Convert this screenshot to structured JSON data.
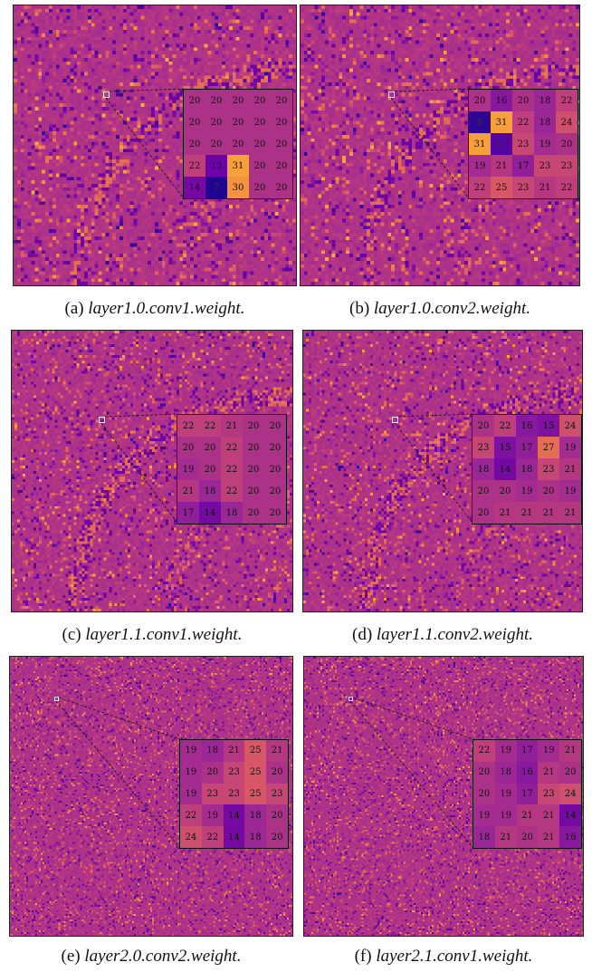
{
  "panels": [
    {
      "id": "a",
      "label": "(a)",
      "name": "layer1.0.conv1.weight.",
      "grid": [
        [
          20,
          20,
          20,
          20,
          20
        ],
        [
          20,
          20,
          20,
          20,
          20
        ],
        [
          20,
          20,
          20,
          20,
          20
        ],
        [
          22,
          13,
          31,
          20,
          20
        ],
        [
          14,
          7,
          30,
          20,
          20
        ]
      ]
    },
    {
      "id": "b",
      "label": "(b)",
      "name": "layer1.0.conv2.weight.",
      "grid": [
        [
          20,
          16,
          20,
          18,
          22
        ],
        [
          8,
          31,
          22,
          18,
          24
        ],
        [
          31,
          11,
          23,
          19,
          20
        ],
        [
          19,
          21,
          17,
          23,
          23
        ],
        [
          22,
          25,
          23,
          21,
          22
        ]
      ]
    },
    {
      "id": "c",
      "label": "(c)",
      "name": "layer1.1.conv1.weight.",
      "grid": [
        [
          22,
          22,
          21,
          20,
          20
        ],
        [
          20,
          20,
          22,
          20,
          20
        ],
        [
          19,
          20,
          22,
          20,
          20
        ],
        [
          21,
          18,
          22,
          20,
          20
        ],
        [
          17,
          14,
          18,
          20,
          20
        ]
      ]
    },
    {
      "id": "d",
      "label": "(d)",
      "name": "layer1.1.conv2.weight.",
      "grid": [
        [
          20,
          22,
          16,
          15,
          24
        ],
        [
          23,
          15,
          17,
          27,
          19
        ],
        [
          18,
          14,
          18,
          23,
          21
        ],
        [
          20,
          20,
          19,
          20,
          19
        ],
        [
          20,
          21,
          21,
          21,
          21
        ]
      ]
    },
    {
      "id": "e",
      "label": "(e)",
      "name": "layer2.0.conv2.weight.",
      "grid": [
        [
          19,
          18,
          21,
          25,
          21
        ],
        [
          19,
          20,
          23,
          25,
          20
        ],
        [
          19,
          23,
          23,
          25,
          23
        ],
        [
          22,
          19,
          14,
          18,
          20
        ],
        [
          24,
          22,
          14,
          18,
          20
        ]
      ]
    },
    {
      "id": "f",
      "label": "(f)",
      "name": "layer2.1.conv1.weight.",
      "grid": [
        [
          22,
          19,
          17,
          19,
          21
        ],
        [
          20,
          18,
          16,
          21,
          20
        ],
        [
          20,
          19,
          17,
          23,
          24
        ],
        [
          19,
          19,
          21,
          21,
          14
        ],
        [
          18,
          21,
          20,
          21,
          16
        ]
      ]
    }
  ]
}
